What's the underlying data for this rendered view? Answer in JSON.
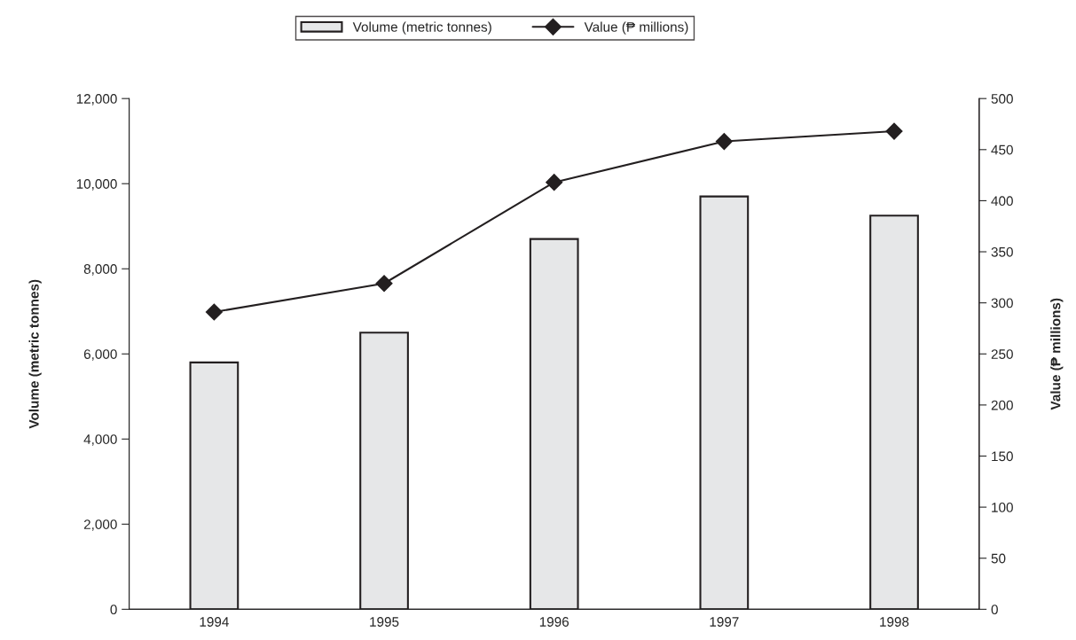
{
  "chart_data": {
    "type": "bar",
    "categories": [
      "1994",
      "1995",
      "1996",
      "1997",
      "1998"
    ],
    "series": [
      {
        "name": "Volume (metric tonnes)",
        "color": "#e6e7e8",
        "values": [
          5800,
          6500,
          8700,
          9700,
          9250
        ]
      },
      {
        "name": "Value (₱ millions)",
        "type": "line",
        "axis": "y2",
        "color": "#231f20",
        "marker": "diamond",
        "values": [
          291,
          319,
          418,
          458,
          468
        ]
      }
    ],
    "ylabel": "Volume (metric tonnes)",
    "y2label": "Value (₱ millions)",
    "ylim": [
      0,
      12000
    ],
    "yticks": [
      {
        "value": 0,
        "label": "0"
      },
      {
        "value": 2000,
        "label": "2,000"
      },
      {
        "value": 4000,
        "label": "4,000"
      },
      {
        "value": 6000,
        "label": "6,000"
      },
      {
        "value": 8000,
        "label": "8,000"
      },
      {
        "value": 10000,
        "label": "10,000"
      },
      {
        "value": 12000,
        "label": "12,000"
      }
    ],
    "y2lim": [
      0,
      500
    ],
    "y2ticks": [
      0,
      50,
      100,
      150,
      200,
      250,
      300,
      350,
      400,
      450,
      500
    ],
    "grid": false,
    "legend": "top"
  }
}
